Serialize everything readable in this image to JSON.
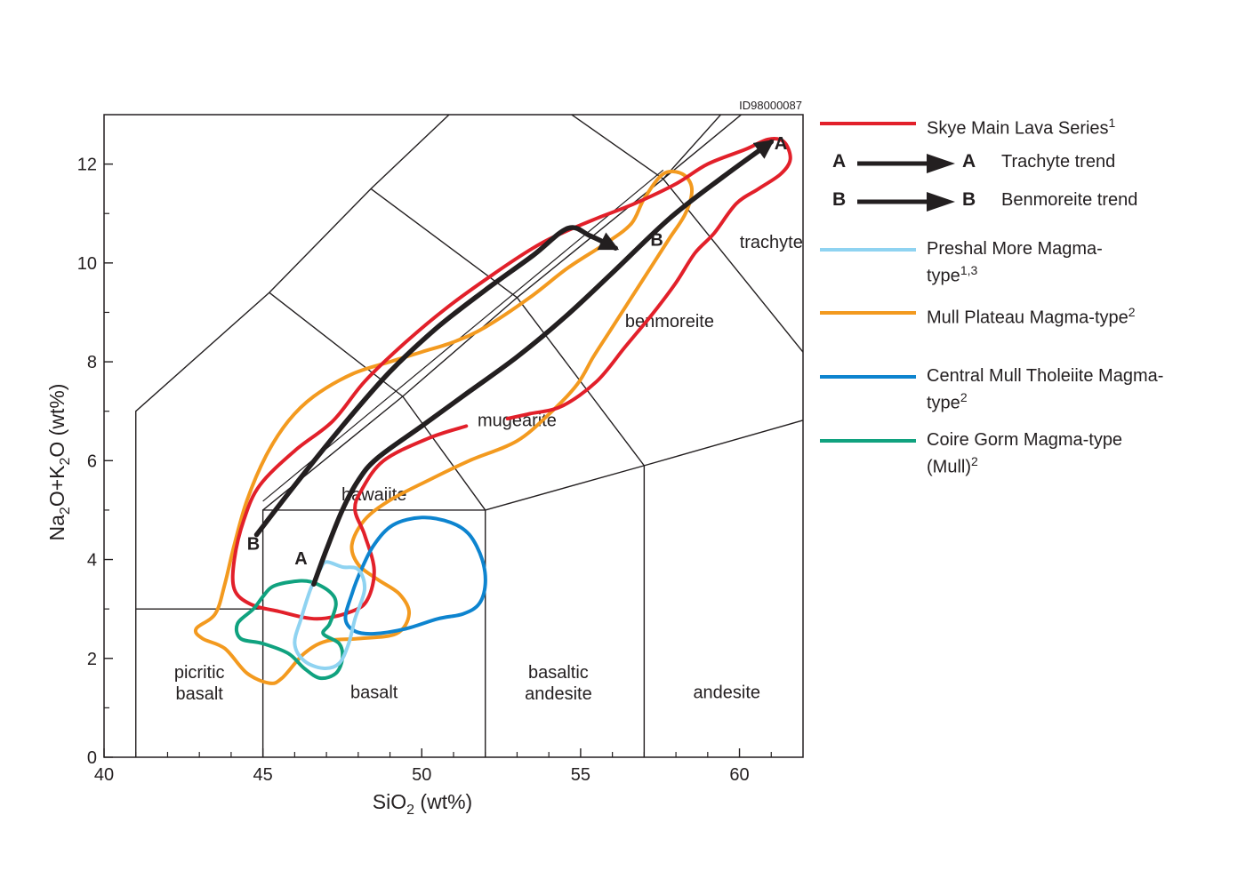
{
  "figure_id": "ID98000087",
  "chart_data": {
    "type": "line",
    "xlabel": "SiO2 (wt%)",
    "xlabel_main": "SiO",
    "xlabel_sub": "2",
    "xlabel_rest": " (wt%)",
    "ylabel_parts": [
      "Na",
      "2",
      "O+K",
      "2",
      "O (wt%)"
    ],
    "xlim": [
      40,
      62
    ],
    "ylim": [
      0,
      13
    ],
    "xticks": [
      40,
      45,
      50,
      55,
      60
    ],
    "yticks": [
      0,
      2,
      4,
      6,
      8,
      10,
      12
    ],
    "grid": false,
    "legend_position": "right",
    "classification_boundaries": [
      [
        [
          41,
          0
        ],
        [
          41,
          7
        ],
        [
          45.2,
          9.4
        ],
        [
          48.4,
          11.5
        ],
        [
          52.5,
          14.0
        ]
      ],
      [
        [
          41,
          3
        ],
        [
          45,
          3
        ]
      ],
      [
        [
          45,
          0
        ],
        [
          45,
          5
        ],
        [
          52,
          5
        ],
        [
          52,
          0
        ]
      ],
      [
        [
          45,
          5
        ],
        [
          49.4,
          7.3
        ],
        [
          53,
          9.3
        ],
        [
          57.6,
          11.7
        ],
        [
          61.0,
          13.5
        ]
      ],
      [
        [
          52,
          5
        ],
        [
          57,
          5.9
        ],
        [
          63,
          7.0
        ]
      ],
      [
        [
          57,
          0
        ],
        [
          57,
          5.9
        ]
      ],
      [
        [
          49.4,
          7.3
        ],
        [
          52,
          5
        ]
      ],
      [
        [
          45.2,
          9.4
        ],
        [
          49.4,
          7.3
        ]
      ],
      [
        [
          53,
          9.3
        ],
        [
          57,
          5.9
        ]
      ],
      [
        [
          48.4,
          11.5
        ],
        [
          53,
          9.3
        ]
      ],
      [
        [
          57.6,
          11.7
        ],
        [
          63,
          7.4
        ]
      ],
      [
        [
          52.5,
          14.0
        ],
        [
          57.6,
          11.7
        ]
      ],
      [
        [
          57.6,
          11.7
        ],
        [
          61.5,
          14.5
        ]
      ]
    ],
    "field_labels": [
      {
        "lines": [
          "picritic",
          "basalt"
        ],
        "x": 43.0,
        "y": 1.6
      },
      {
        "lines": [
          "basalt"
        ],
        "x": 48.5,
        "y": 1.2
      },
      {
        "lines": [
          "basaltic",
          "andesite"
        ],
        "x": 54.3,
        "y": 1.6
      },
      {
        "lines": [
          "andesite"
        ],
        "x": 59.6,
        "y": 1.2
      },
      {
        "lines": [
          "hawaiite"
        ],
        "x": 48.5,
        "y": 5.2
      },
      {
        "lines": [
          "mugearite"
        ],
        "x": 53.0,
        "y": 6.7
      },
      {
        "lines": [
          "benmoreite"
        ],
        "x": 57.8,
        "y": 8.7
      },
      {
        "lines": [
          "trachyte"
        ],
        "x": 61.0,
        "y": 10.3
      }
    ],
    "series": [
      {
        "name": "Skye Main Lava Series",
        "superscript": "1",
        "color": "#e2202a",
        "closed": false,
        "points": [
          [
            51.4,
            6.7
          ],
          [
            50.2,
            6.45
          ],
          [
            48.8,
            6.0
          ],
          [
            48.1,
            5.4
          ],
          [
            47.9,
            5.0
          ],
          [
            48.2,
            4.5
          ],
          [
            48.5,
            3.8
          ],
          [
            48.3,
            3.2
          ],
          [
            47.8,
            2.95
          ],
          [
            46.7,
            2.8
          ],
          [
            45.5,
            2.95
          ],
          [
            44.6,
            3.1
          ],
          [
            44.1,
            3.4
          ],
          [
            44.1,
            4.0
          ],
          [
            44.4,
            4.8
          ],
          [
            44.9,
            5.5
          ],
          [
            46.0,
            6.2
          ],
          [
            47.2,
            6.8
          ],
          [
            48.2,
            7.6
          ],
          [
            49.5,
            8.4
          ],
          [
            50.8,
            9.1
          ],
          [
            52.2,
            9.75
          ],
          [
            53.5,
            10.3
          ],
          [
            54.4,
            10.6
          ],
          [
            55.5,
            10.9
          ],
          [
            56.7,
            11.2
          ],
          [
            58.0,
            11.6
          ],
          [
            59.0,
            12.0
          ],
          [
            60.2,
            12.3
          ],
          [
            60.9,
            12.5
          ],
          [
            61.4,
            12.45
          ],
          [
            61.6,
            12.1
          ],
          [
            61.3,
            11.8
          ],
          [
            60.6,
            11.5
          ],
          [
            59.9,
            11.2
          ],
          [
            59.2,
            10.6
          ],
          [
            58.6,
            10.2
          ],
          [
            58.0,
            9.6
          ],
          [
            57.3,
            9.0
          ],
          [
            56.4,
            8.3
          ],
          [
            55.5,
            7.6
          ],
          [
            54.4,
            7.1
          ],
          [
            53.4,
            6.95
          ],
          [
            52.7,
            6.85
          ]
        ]
      },
      {
        "name": "Preshal More Magma-type",
        "superscript": "1,3",
        "color": "#8fd3f1",
        "closed": true,
        "points": [
          [
            47.0,
            3.95
          ],
          [
            47.5,
            3.85
          ],
          [
            48.0,
            3.8
          ],
          [
            48.2,
            3.4
          ],
          [
            47.9,
            2.8
          ],
          [
            47.7,
            2.3
          ],
          [
            47.4,
            1.9
          ],
          [
            46.9,
            1.8
          ],
          [
            46.3,
            1.95
          ],
          [
            46.0,
            2.3
          ],
          [
            46.2,
            2.8
          ],
          [
            46.5,
            3.4
          ],
          [
            46.8,
            3.8
          ]
        ]
      },
      {
        "name": "Mull Plateau Magma-type",
        "superscript": "2",
        "color": "#f39a1f",
        "closed": true,
        "points": [
          [
            57.6,
            11.8
          ],
          [
            58.2,
            11.8
          ],
          [
            58.5,
            11.5
          ],
          [
            58.3,
            11.0
          ],
          [
            57.8,
            10.5
          ],
          [
            57.2,
            9.9
          ],
          [
            56.5,
            9.2
          ],
          [
            55.9,
            8.6
          ],
          [
            55.4,
            8.1
          ],
          [
            54.9,
            7.55
          ],
          [
            54.1,
            7.0
          ],
          [
            53.0,
            6.4
          ],
          [
            51.5,
            6.0
          ],
          [
            50.2,
            5.6
          ],
          [
            49.0,
            5.2
          ],
          [
            48.2,
            4.8
          ],
          [
            47.8,
            4.3
          ],
          [
            48.0,
            3.9
          ],
          [
            48.6,
            3.6
          ],
          [
            49.3,
            3.3
          ],
          [
            49.6,
            2.9
          ],
          [
            49.2,
            2.5
          ],
          [
            48.0,
            2.4
          ],
          [
            47.0,
            2.35
          ],
          [
            46.3,
            2.1
          ],
          [
            45.6,
            1.6
          ],
          [
            45.2,
            1.5
          ],
          [
            44.5,
            1.7
          ],
          [
            43.8,
            2.2
          ],
          [
            43.1,
            2.4
          ],
          [
            42.9,
            2.6
          ],
          [
            43.5,
            2.9
          ],
          [
            43.8,
            3.5
          ],
          [
            44.1,
            4.3
          ],
          [
            44.5,
            5.2
          ],
          [
            45.1,
            6.1
          ],
          [
            45.8,
            6.8
          ],
          [
            46.6,
            7.3
          ],
          [
            47.8,
            7.75
          ],
          [
            49.0,
            8.0
          ],
          [
            50.0,
            8.2
          ],
          [
            51.0,
            8.4
          ],
          [
            52.0,
            8.7
          ],
          [
            53.4,
            9.3
          ],
          [
            54.6,
            9.9
          ],
          [
            55.8,
            10.4
          ],
          [
            56.6,
            10.8
          ],
          [
            57.0,
            11.3
          ]
        ]
      },
      {
        "name": "Central Mull Tholeiite Magma-type",
        "superscript": "2",
        "color": "#0d84cf",
        "closed": true,
        "points": [
          [
            50.0,
            4.85
          ],
          [
            50.9,
            4.75
          ],
          [
            51.5,
            4.5
          ],
          [
            51.9,
            4.0
          ],
          [
            52.0,
            3.5
          ],
          [
            51.8,
            3.1
          ],
          [
            51.3,
            2.9
          ],
          [
            50.5,
            2.8
          ],
          [
            49.5,
            2.6
          ],
          [
            48.5,
            2.5
          ],
          [
            47.9,
            2.55
          ],
          [
            47.6,
            2.8
          ],
          [
            47.8,
            3.3
          ],
          [
            48.1,
            3.8
          ],
          [
            48.5,
            4.3
          ],
          [
            49.1,
            4.7
          ]
        ]
      },
      {
        "name": "Coire Gorm Magma-type (Mull)",
        "superscript": "2",
        "color": "#10a27f",
        "closed": true,
        "points": [
          [
            46.5,
            3.55
          ],
          [
            47.1,
            3.35
          ],
          [
            47.3,
            3.1
          ],
          [
            47.1,
            2.7
          ],
          [
            46.9,
            2.5
          ],
          [
            47.4,
            2.3
          ],
          [
            47.5,
            2.0
          ],
          [
            47.3,
            1.7
          ],
          [
            46.8,
            1.6
          ],
          [
            46.3,
            1.8
          ],
          [
            45.8,
            2.1
          ],
          [
            45.0,
            2.3
          ],
          [
            44.3,
            2.4
          ],
          [
            44.2,
            2.7
          ],
          [
            44.7,
            3.0
          ],
          [
            45.0,
            3.25
          ],
          [
            45.3,
            3.45
          ],
          [
            45.9,
            3.55
          ]
        ]
      }
    ],
    "trends": [
      {
        "label": "A",
        "name": "Trachyte trend",
        "start_label_at": [
          46.2,
          3.9
        ],
        "end_label_at": [
          61.3,
          12.3
        ],
        "points": [
          [
            46.6,
            3.5
          ],
          [
            47.0,
            4.2
          ],
          [
            47.5,
            5.0
          ],
          [
            48.0,
            5.6
          ],
          [
            48.6,
            6.05
          ],
          [
            50.0,
            6.7
          ],
          [
            51.5,
            7.4
          ],
          [
            53.0,
            8.1
          ],
          [
            54.5,
            8.9
          ],
          [
            56.0,
            9.8
          ],
          [
            57.8,
            10.9
          ],
          [
            59.5,
            11.75
          ],
          [
            61.0,
            12.45
          ]
        ]
      },
      {
        "label": "B",
        "name": "Benmoreite trend",
        "start_label_at": [
          44.7,
          4.2
        ],
        "end_label_at": [
          57.4,
          10.35
        ],
        "points": [
          [
            44.8,
            4.5
          ],
          [
            46.0,
            5.5
          ],
          [
            47.5,
            6.7
          ],
          [
            49.0,
            7.8
          ],
          [
            50.5,
            8.7
          ],
          [
            52.0,
            9.45
          ],
          [
            53.5,
            10.15
          ],
          [
            54.6,
            10.7
          ],
          [
            55.3,
            10.55
          ],
          [
            56.1,
            10.3
          ]
        ]
      }
    ]
  },
  "legend": {
    "items": [
      {
        "kind": "line",
        "label": "Skye Main Lava Series",
        "superscript": "1",
        "color": "#e2202a"
      },
      {
        "kind": "trend",
        "letter": "A",
        "label": "Trachyte trend"
      },
      {
        "kind": "trend",
        "letter": "B",
        "label": "Benmoreite trend"
      },
      {
        "kind": "line",
        "label": "Preshal More Magma-",
        "label2": "type",
        "superscript": "1,3",
        "color": "#8fd3f1"
      },
      {
        "kind": "line",
        "label": "Mull Plateau Magma-type",
        "superscript": "2",
        "color": "#f39a1f"
      },
      {
        "kind": "line",
        "label": "Central Mull Tholeiite Magma-",
        "label2": "type",
        "superscript": "2",
        "color": "#0d84cf"
      },
      {
        "kind": "line",
        "label": "Coire Gorm Magma-type",
        "label2": "(Mull)",
        "superscript": "2",
        "color": "#10a27f"
      }
    ]
  }
}
